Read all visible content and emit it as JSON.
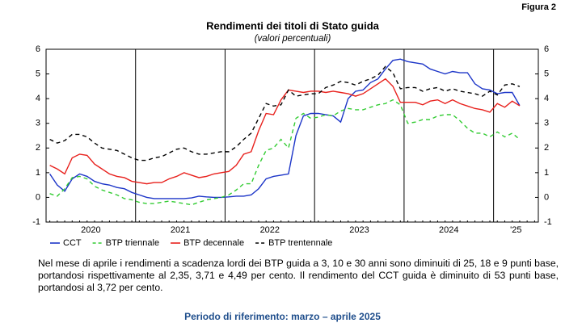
{
  "figure_label": "Figura 2",
  "note": "Nel mese di aprile i rendimenti a scadenza lordi dei BTP guida a 3, 10 e 30 anni sono diminuiti di 25, 18 e 9 punti base, portandosi rispettivamente al 2,35, 3,71 e 4,49 per cento.  Il rendimento del CCT guida è diminuito di 53 punti base, portandosi al 3,72 per cento.",
  "reference": "Periodo di riferimento: marzo – aprile 2025",
  "chart_data": {
    "type": "line",
    "title": "Rendimenti dei titoli di Stato guida",
    "subtitle": "(valori percentuali)",
    "categories": [
      null,
      null,
      null,
      null,
      null,
      null,
      "2020",
      null,
      null,
      null,
      null,
      null,
      null,
      null,
      null,
      null,
      null,
      null,
      "2021",
      null,
      null,
      null,
      null,
      null,
      null,
      null,
      null,
      null,
      null,
      null,
      "2022",
      null,
      null,
      null,
      null,
      null,
      null,
      null,
      null,
      null,
      null,
      null,
      "2023",
      null,
      null,
      null,
      null,
      null,
      null,
      null,
      null,
      null,
      null,
      null,
      "2024",
      null,
      null,
      null,
      null,
      null,
      null,
      null,
      null,
      "'25",
      null,
      null
    ],
    "ylim": [
      -1,
      6
    ],
    "yticks": [
      -1,
      0,
      1,
      2,
      3,
      4,
      5,
      6
    ],
    "right_axis": true,
    "series": [
      {
        "name": "CCT",
        "color": "#1c35c8",
        "dashed": false,
        "values": [
          0.95,
          0.5,
          0.25,
          0.75,
          0.95,
          0.85,
          0.65,
          0.55,
          0.5,
          0.4,
          0.35,
          0.2,
          0.1,
          0.0,
          -0.05,
          -0.05,
          -0.05,
          -0.05,
          -0.05,
          -0.02,
          0.05,
          0.02,
          0.0,
          0.0,
          0.02,
          0.05,
          0.05,
          0.1,
          0.35,
          0.75,
          0.85,
          0.9,
          0.95,
          2.5,
          3.3,
          3.4,
          3.4,
          3.35,
          3.3,
          3.05,
          4.0,
          4.3,
          4.35,
          4.65,
          4.8,
          5.2,
          5.55,
          5.6,
          5.5,
          5.45,
          5.4,
          5.2,
          5.1,
          5.0,
          5.1,
          5.05,
          5.05,
          4.6,
          4.4,
          4.35,
          4.2,
          4.25,
          4.25,
          3.72,
          null,
          null
        ]
      },
      {
        "name": "BTP triennale",
        "color": "#33cc33",
        "dashed": true,
        "values": [
          0.15,
          0.05,
          0.35,
          0.8,
          0.85,
          0.75,
          0.45,
          0.3,
          0.2,
          0.1,
          -0.05,
          -0.1,
          -0.2,
          -0.25,
          -0.25,
          -0.2,
          -0.15,
          -0.2,
          -0.25,
          -0.3,
          -0.2,
          -0.1,
          -0.05,
          0.0,
          0.1,
          0.3,
          0.55,
          0.55,
          1.3,
          1.9,
          2.0,
          2.35,
          2.0,
          3.2,
          3.4,
          3.2,
          3.25,
          3.35,
          3.3,
          3.5,
          3.6,
          3.55,
          3.55,
          3.65,
          3.75,
          3.8,
          3.95,
          3.75,
          3.0,
          3.05,
          3.15,
          3.15,
          3.3,
          3.35,
          3.35,
          3.1,
          2.8,
          2.6,
          2.6,
          2.45,
          2.65,
          2.45,
          2.6,
          2.35,
          null,
          null
        ]
      },
      {
        "name": "BTP decennale",
        "color": "#e8201c",
        "dashed": false,
        "values": [
          1.3,
          1.15,
          0.95,
          1.6,
          1.75,
          1.7,
          1.35,
          1.15,
          0.95,
          0.85,
          0.8,
          0.65,
          0.6,
          0.55,
          0.6,
          0.6,
          0.75,
          0.85,
          1.0,
          0.9,
          0.8,
          0.85,
          0.95,
          1.0,
          1.05,
          1.3,
          1.75,
          1.85,
          2.7,
          3.4,
          3.35,
          3.95,
          4.35,
          4.3,
          4.25,
          4.3,
          4.3,
          4.25,
          4.3,
          4.25,
          4.2,
          4.1,
          4.2,
          4.4,
          4.6,
          4.8,
          4.5,
          3.85,
          3.85,
          3.85,
          3.75,
          3.9,
          3.95,
          3.8,
          3.95,
          3.8,
          3.7,
          3.6,
          3.55,
          3.45,
          3.8,
          3.65,
          3.9,
          3.71,
          null,
          null
        ]
      },
      {
        "name": "BTP trentennale",
        "color": "#000000",
        "dashed": true,
        "values": [
          2.35,
          2.2,
          2.3,
          2.55,
          2.55,
          2.45,
          2.2,
          2.0,
          1.95,
          1.9,
          1.75,
          1.6,
          1.5,
          1.5,
          1.6,
          1.65,
          1.8,
          1.95,
          2.0,
          1.85,
          1.75,
          1.75,
          1.8,
          1.85,
          1.85,
          2.05,
          2.35,
          2.6,
          3.2,
          3.8,
          3.7,
          3.75,
          4.35,
          4.1,
          4.15,
          4.2,
          4.2,
          4.45,
          4.55,
          4.7,
          4.65,
          4.55,
          4.7,
          4.8,
          4.95,
          5.3,
          5.05,
          4.4,
          4.45,
          4.45,
          4.3,
          4.4,
          4.45,
          4.3,
          4.4,
          4.3,
          4.25,
          4.2,
          4.1,
          4.3,
          4.15,
          4.55,
          4.6,
          4.49,
          null,
          null
        ]
      }
    ]
  }
}
